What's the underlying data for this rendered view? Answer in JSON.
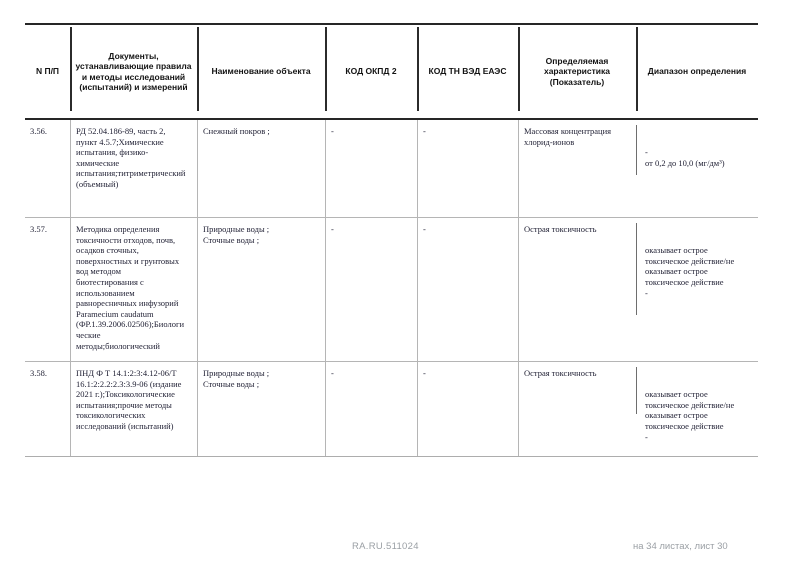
{
  "table": {
    "headers": [
      "N П/П",
      "Документы,\nустанавливающие правила\nи методы исследований\n(испытаний) и измерений",
      "Наименование объекта",
      "КОД ОКПД 2",
      "КОД ТН ВЭД ЕАЭС",
      "Определяемая\nхарактеристика\n(Показатель)",
      "Диапазон определения"
    ],
    "rows": [
      {
        "num": "3.56.",
        "docs": "РД 52.04.186-89, часть 2,\nпункт 4.5.7;Химические\nиспытания, физико-\nхимические\nиспытания;титриметрический\n(объемный)",
        "object": "Снежный покров ;",
        "okpd2": "-",
        "tnved": "-",
        "characteristic": "Массовая концентрация\nхлорид-ионов",
        "range": "-\nот 0,2 до 10,0 (мг/дм³)"
      },
      {
        "num": "3.57.",
        "docs": "Методика определения\nтоксичности отходов, почв,\nосадков сточных,\nповерхностных и грунтовых\nвод методом\nбиотестирования с\nиспользованием\nравноресничных инфузорий\nParamecium caudatum\n(ФР.1.39.2006.02506);Биологи\nческие\nметоды;биологический",
        "object": "Природные воды ;\nСточные воды ;",
        "okpd2": "-",
        "tnved": "-",
        "characteristic": "Острая токсичность",
        "range": "оказывает острое\nтоксическое действие/не\nоказывает острое\nтоксическое действие\n-"
      },
      {
        "num": "3.58.",
        "docs": "ПНД Ф Т 14.1:2:3:4.12-06/Т\n16.1:2:2.2:2.3:3.9-06 (издание\n2021 г.);Токсикологические\nиспытания;прочие методы\nтоксикологических\nисследований (испытаний)",
        "object": "Природные воды ;\nСточные воды ;",
        "okpd2": "-",
        "tnved": "-",
        "characteristic": "Острая токсичность",
        "range": "оказывает острое\nтоксическое действие/не\nоказывает острое\nтоксическое действие\n-"
      }
    ]
  },
  "footer": {
    "registry_number": "RA.RU.511024",
    "sheet_info": "на 34 листах, лист 30"
  }
}
